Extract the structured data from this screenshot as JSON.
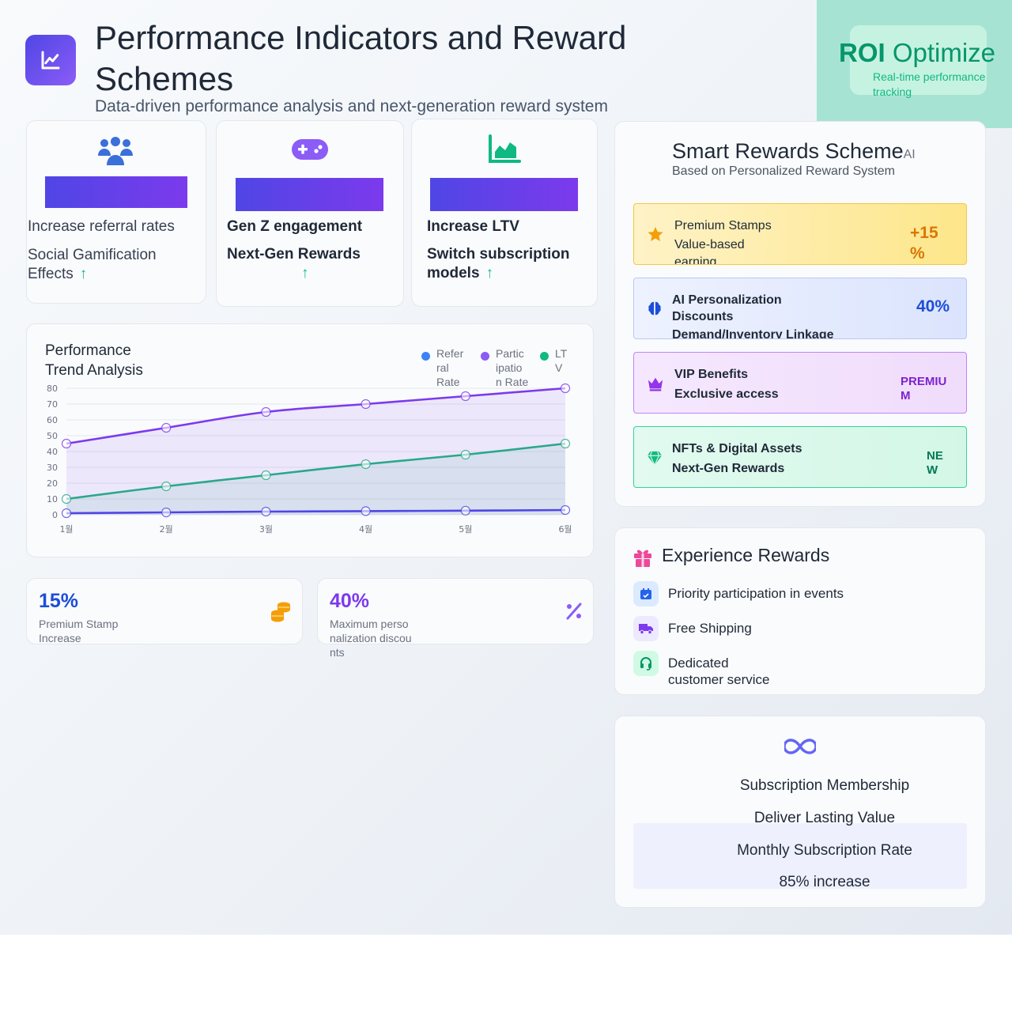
{
  "header": {
    "title": "Performance Indicators and Reward Schemes",
    "subtitle": "Data-driven performance analysis and next-generation reward system",
    "logo_icon": "trend-chart-icon"
  },
  "roi": {
    "title_bold": "ROI",
    "title_rest": " Optimize",
    "subtitle": "Real-time performance tracking"
  },
  "metrics": [
    {
      "icon": "users-icon",
      "line1": "Increase referral rates",
      "line2": "Social Gamification Effects",
      "trend": "↑",
      "bold": false
    },
    {
      "icon": "gamepad-icon",
      "line1": "Gen Z engagement",
      "line2": "Next-Gen Rewards",
      "trend": "↑",
      "bold": true
    },
    {
      "icon": "area-chart-icon",
      "line1": "Increase LTV",
      "line2": "Switch subscription models",
      "trend": "↑",
      "bold": true
    }
  ],
  "chart_data": {
    "type": "line",
    "title": "Performance Trend Analysis",
    "categories": [
      "1월",
      "2월",
      "3월",
      "4월",
      "5월",
      "6월"
    ],
    "ylim": [
      0,
      80
    ],
    "yticks": [
      0,
      10,
      20,
      30,
      40,
      50,
      60,
      70,
      80
    ],
    "grid": true,
    "legend_position": "top-right",
    "series": [
      {
        "name": "Referral Rate",
        "color": "#4f46e5",
        "legend_color": "#3b82f6",
        "values": [
          1,
          1.5,
          2,
          2.3,
          2.6,
          3
        ],
        "fill": false
      },
      {
        "name": "Participation Rate",
        "color": "#7c3aed",
        "legend_color": "#8b5cf6",
        "values": [
          45,
          55,
          65,
          70,
          75,
          80
        ],
        "fill": true
      },
      {
        "name": "LTV",
        "color": "#2aa88a",
        "legend_color": "#10b981",
        "values": [
          10,
          18,
          25,
          32,
          38,
          45
        ],
        "fill": true
      }
    ]
  },
  "chart_legend": {
    "referral": "Refer ral Rate",
    "participation": "Partic ipatio n Rate",
    "ltv": "LT V"
  },
  "stats": [
    {
      "value": "15%",
      "label": "Premium Stamp Increase",
      "color": "#1d4ed8",
      "icon": "coins-icon"
    },
    {
      "value": "40%",
      "label": "Maximum personalization discounts",
      "color": "#7c3aed",
      "icon": "percent-icon"
    }
  ],
  "rewards": {
    "title": "Smart Rewards Scheme",
    "title_suffix": "AI",
    "subtitle": "Based on Personalized Reward System",
    "items": [
      {
        "icon": "star-icon",
        "line1": "Premium Stamps",
        "line2": "Value-based earning",
        "value": "+15 %",
        "bg": "#fde68a",
        "border": "#f5c842",
        "value_color": "#d97706"
      },
      {
        "icon": "brain-icon",
        "line1": "AI Personalization Discounts",
        "line2": "Demand/Inventory Linkage",
        "value": "40%",
        "bg": "#dbe4fd",
        "border": "#b9c8f6",
        "value_color": "#1d4ed8"
      },
      {
        "icon": "crown-icon",
        "line1": "VIP Benefits",
        "line2": "Exclusive access",
        "value": "PREMIU M",
        "bg": "#f0dcfb",
        "border": "#c084fc",
        "value_color": "#7e22ce"
      },
      {
        "icon": "gem-icon",
        "line1": "NFTs & Digital Assets",
        "line2": "Next-Gen Rewards",
        "value": "NE W",
        "bg": "#d3f7e6",
        "border": "#34d399",
        "value_color": "#047857"
      }
    ]
  },
  "experience": {
    "title": "Experience Rewards",
    "title_icon": "gift-icon",
    "items": [
      {
        "icon": "calendar-check-icon",
        "label": "Priority participation in events"
      },
      {
        "icon": "truck-icon",
        "label": "Free Shipping"
      },
      {
        "icon": "headset-icon",
        "label": "Dedicated customer service"
      }
    ]
  },
  "subscription": {
    "icon": "infinity-icon",
    "title": "Subscription Membership",
    "tagline": "Deliver Lasting Value",
    "rate_label": "Monthly Subscription Rate",
    "rate_value": "85% increase"
  }
}
